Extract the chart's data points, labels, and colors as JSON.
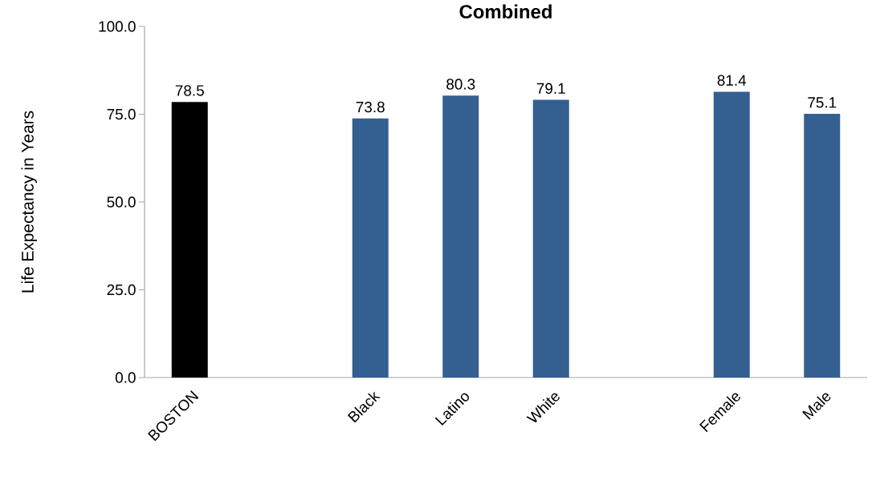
{
  "chart_data": {
    "type": "bar",
    "title": "Combined",
    "ylabel": "Life Expectancy in Years",
    "categories": [
      "BOSTON",
      null,
      "Black",
      "Latino",
      "White",
      null,
      "Female",
      "Male"
    ],
    "values": [
      78.5,
      null,
      73.8,
      80.3,
      79.1,
      null,
      81.4,
      75.1
    ],
    "colors": [
      "#000000",
      "#345f91",
      "#345f91",
      "#345f91",
      "#345f91",
      "#345f91",
      "#345f91",
      "#345f91"
    ],
    "ylim": [
      0,
      100
    ],
    "yticks": [
      {
        "value": 0,
        "label": "0.0"
      },
      {
        "value": 25,
        "label": "25.0"
      },
      {
        "value": 50,
        "label": "50.0"
      },
      {
        "value": 75,
        "label": "75.0"
      },
      {
        "value": 100,
        "label": "100.0"
      }
    ],
    "data_labels": true,
    "grid": false,
    "legend": false
  }
}
